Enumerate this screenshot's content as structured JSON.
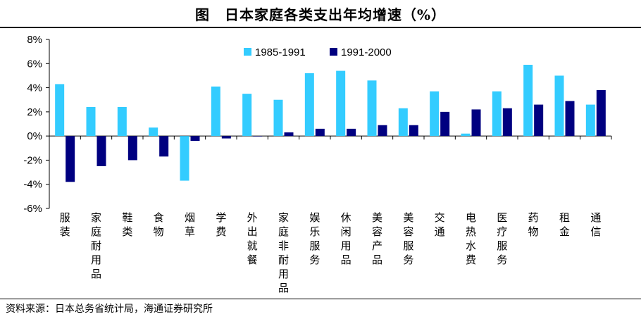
{
  "title": "图　日本家庭各类支出年均增速（%）",
  "source": "资料来源：日本总务省统计局，海通证券研究所",
  "chart_data": {
    "type": "bar",
    "title": "图　日本家庭各类支出年均增速（%）",
    "xlabel": "",
    "ylabel": "",
    "ylim": [
      -6,
      8
    ],
    "yticks": [
      "8%",
      "6%",
      "4%",
      "2%",
      "0%",
      "-2%",
      "-4%",
      "-6%"
    ],
    "legend_position": "top-center",
    "grid": false,
    "categories": [
      "服装",
      "家庭耐用品",
      "鞋类",
      "食物",
      "烟草",
      "学费",
      "外出就餐",
      "家庭非耐用品",
      "娱乐服务",
      "休闲用品",
      "美容产品",
      "美容服务",
      "交通",
      "电热水费",
      "医疗服务",
      "药物",
      "租金",
      "通信"
    ],
    "series": [
      {
        "name": "1985-1991",
        "color": "#33ccff",
        "values": [
          4.3,
          2.4,
          2.4,
          0.7,
          -3.7,
          4.1,
          3.5,
          3.0,
          5.2,
          5.4,
          4.6,
          2.3,
          3.7,
          0.2,
          3.7,
          5.9,
          5.0,
          2.6
        ]
      },
      {
        "name": "1991-2000",
        "color": "#000080",
        "values": [
          -3.8,
          -2.5,
          -2.0,
          -1.7,
          -0.4,
          -0.2,
          0.0,
          0.3,
          0.6,
          0.6,
          0.9,
          0.9,
          2.0,
          2.2,
          2.3,
          2.6,
          2.9,
          3.8
        ]
      }
    ]
  }
}
